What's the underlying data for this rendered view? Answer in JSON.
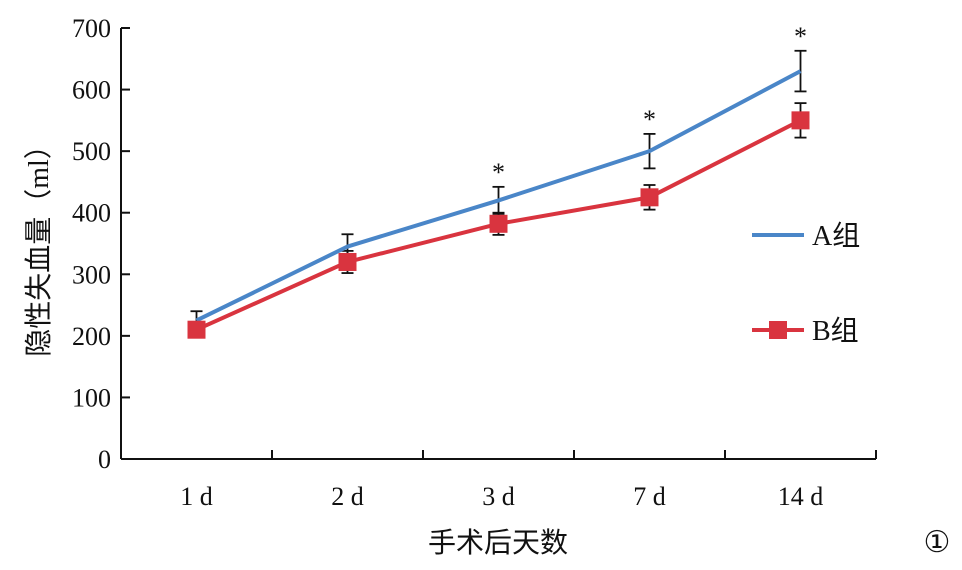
{
  "chart_data": {
    "type": "line",
    "xlabel": "手术后天数",
    "ylabel": "隐性失血量（ml）",
    "categories": [
      "1 d",
      "2 d",
      "3 d",
      "7 d",
      "14 d"
    ],
    "ylim": [
      0,
      700
    ],
    "yticks": [
      0,
      100,
      200,
      300,
      400,
      500,
      600,
      700
    ],
    "legend_position": "right",
    "grid": false,
    "series": [
      {
        "name": "A组",
        "color": "#4a86c8",
        "marker": "none",
        "values": [
          225,
          345,
          420,
          500,
          630
        ],
        "errors": [
          15,
          20,
          22,
          28,
          33
        ]
      },
      {
        "name": "B组",
        "color": "#d9343f",
        "marker": "square",
        "values": [
          210,
          320,
          382,
          425,
          550
        ],
        "errors": [
          10,
          18,
          18,
          20,
          28
        ]
      }
    ],
    "significance": [
      "",
      "",
      "*",
      "*",
      "*"
    ]
  },
  "figure_label": "①"
}
